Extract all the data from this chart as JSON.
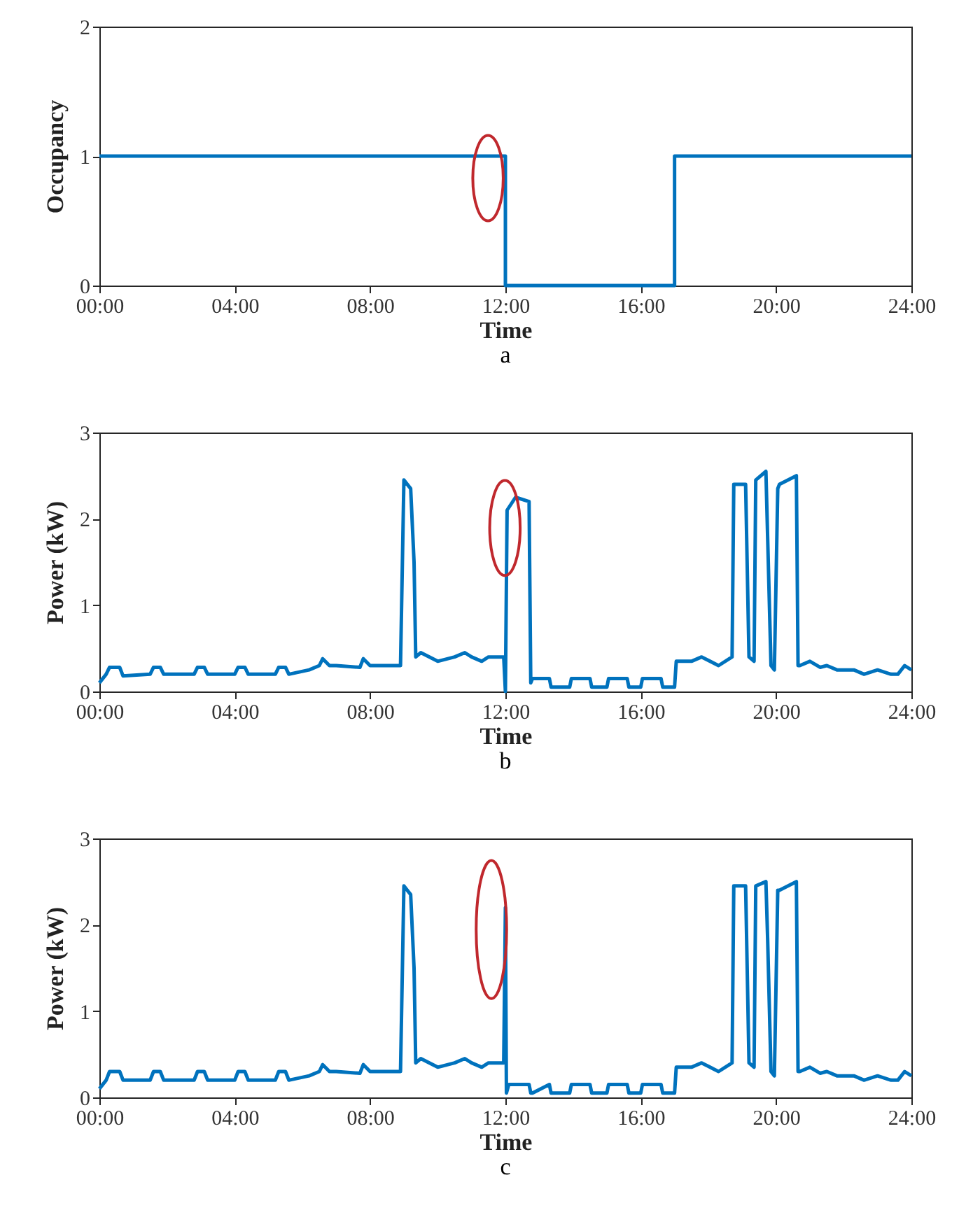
{
  "chart_data": [
    {
      "type": "step",
      "xlabel": "Time",
      "ylabel": "Occupancy",
      "annotations": [
        "a"
      ],
      "color": "#0072bd",
      "line_style": "solid",
      "x": [
        0,
        12,
        17,
        24
      ],
      "values": [
        1,
        0,
        1,
        1
      ],
      "xlim": [
        0,
        24
      ],
      "xticks": [
        {
          "value": 0,
          "label": "00:00"
        },
        {
          "value": 4,
          "label": "04:00"
        },
        {
          "value": 8,
          "label": "08:00"
        },
        {
          "value": 12,
          "label": "12:00"
        },
        {
          "value": 16,
          "label": "16:00"
        },
        {
          "value": 20,
          "label": "20:00"
        },
        {
          "value": 24,
          "label": "24:00"
        }
      ],
      "ylim": [
        0,
        2
      ],
      "yticks": [
        0,
        1,
        2
      ]
    },
    {
      "type": "line",
      "xlabel": "Time",
      "ylabel": "Power (kW)",
      "annotations": [
        "b"
      ],
      "color": "#0072bd",
      "line_style": "solid",
      "x": [
        0,
        0.2,
        0.3,
        0.6,
        0.7,
        1.5,
        1.6,
        1.8,
        1.9,
        2.8,
        2.9,
        3.1,
        3.2,
        4.0,
        4.1,
        4.3,
        4.4,
        5.2,
        5.3,
        5.5,
        5.6,
        6.2,
        6.5,
        6.6,
        6.8,
        7.0,
        7.7,
        7.8,
        8.0,
        8.9,
        9.0,
        9.2,
        9.3,
        9.35,
        9.5,
        10.0,
        10.5,
        10.8,
        11.0,
        11.3,
        11.5,
        11.95,
        12.0,
        12.05,
        12.3,
        12.7,
        12.75,
        12.8,
        13.3,
        13.35,
        13.9,
        13.95,
        14.5,
        14.55,
        15.0,
        15.05,
        15.6,
        15.65,
        16.0,
        16.05,
        16.6,
        16.65,
        17.0,
        17.05,
        17.5,
        17.8,
        18.3,
        18.7,
        18.75,
        19.1,
        19.2,
        19.35,
        19.4,
        19.7,
        19.75,
        19.85,
        19.95,
        20.05,
        20.1,
        20.6,
        20.65,
        20.7,
        21.0,
        21.3,
        21.5,
        21.8,
        22.3,
        22.6,
        23.0,
        23.4,
        23.6,
        23.8,
        24
      ],
      "values": [
        0.1,
        0.2,
        0.28,
        0.28,
        0.18,
        0.2,
        0.28,
        0.28,
        0.2,
        0.2,
        0.28,
        0.28,
        0.2,
        0.2,
        0.28,
        0.28,
        0.2,
        0.2,
        0.28,
        0.28,
        0.2,
        0.25,
        0.3,
        0.38,
        0.3,
        0.3,
        0.28,
        0.38,
        0.3,
        0.3,
        2.45,
        2.35,
        1.5,
        0.4,
        0.45,
        0.35,
        0.4,
        0.45,
        0.4,
        0.35,
        0.4,
        0.4,
        0.0,
        2.1,
        2.25,
        2.2,
        0.1,
        0.15,
        0.15,
        0.05,
        0.05,
        0.15,
        0.15,
        0.05,
        0.05,
        0.15,
        0.15,
        0.05,
        0.05,
        0.15,
        0.15,
        0.05,
        0.05,
        0.35,
        0.35,
        0.4,
        0.3,
        0.4,
        2.4,
        2.4,
        0.4,
        0.35,
        2.45,
        2.55,
        1.8,
        0.3,
        0.25,
        2.35,
        2.4,
        2.5,
        0.3,
        0.3,
        0.35,
        0.28,
        0.3,
        0.25,
        0.25,
        0.2,
        0.25,
        0.2,
        0.2,
        0.3,
        0.25
      ],
      "xlim": [
        0,
        24
      ],
      "xticks": [
        {
          "value": 0,
          "label": "00:00"
        },
        {
          "value": 4,
          "label": "04:00"
        },
        {
          "value": 8,
          "label": "08:00"
        },
        {
          "value": 12,
          "label": "12:00"
        },
        {
          "value": 16,
          "label": "16:00"
        },
        {
          "value": 20,
          "label": "20:00"
        },
        {
          "value": 24,
          "label": "24:00"
        }
      ],
      "ylim": [
        0,
        3
      ],
      "yticks": [
        0,
        1,
        2,
        3
      ]
    },
    {
      "type": "line",
      "xlabel": "Time",
      "ylabel": "Power (kW)",
      "annotations": [
        "c"
      ],
      "color": "#0072bd",
      "line_style": "solid",
      "x": [
        0,
        0.2,
        0.3,
        0.6,
        0.7,
        1.5,
        1.6,
        1.8,
        1.9,
        2.8,
        2.9,
        3.1,
        3.2,
        4.0,
        4.1,
        4.3,
        4.4,
        5.2,
        5.3,
        5.5,
        5.6,
        6.2,
        6.5,
        6.6,
        6.8,
        7.0,
        7.7,
        7.8,
        8.0,
        8.9,
        9.0,
        9.2,
        9.3,
        9.35,
        9.5,
        10.0,
        10.5,
        10.8,
        11.0,
        11.3,
        11.5,
        11.95,
        12.0,
        12.03,
        12.1,
        12.7,
        12.75,
        12.8,
        13.3,
        13.35,
        13.9,
        13.95,
        14.5,
        14.55,
        15.0,
        15.05,
        15.6,
        15.65,
        16.0,
        16.05,
        16.6,
        16.65,
        17.0,
        17.05,
        17.5,
        17.8,
        18.3,
        18.7,
        18.75,
        19.1,
        19.2,
        19.35,
        19.4,
        19.7,
        19.75,
        19.85,
        19.95,
        20.05,
        20.1,
        20.6,
        20.65,
        20.7,
        21.0,
        21.3,
        21.5,
        21.8,
        22.3,
        22.6,
        23.0,
        23.4,
        23.6,
        23.8,
        24
      ],
      "values": [
        0.1,
        0.2,
        0.3,
        0.3,
        0.2,
        0.2,
        0.3,
        0.3,
        0.2,
        0.2,
        0.3,
        0.3,
        0.2,
        0.2,
        0.3,
        0.3,
        0.2,
        0.2,
        0.3,
        0.3,
        0.2,
        0.25,
        0.3,
        0.38,
        0.3,
        0.3,
        0.28,
        0.38,
        0.3,
        0.3,
        2.45,
        2.35,
        1.5,
        0.4,
        0.45,
        0.35,
        0.4,
        0.45,
        0.4,
        0.35,
        0.4,
        0.4,
        2.2,
        0.05,
        0.15,
        0.15,
        0.05,
        0.05,
        0.15,
        0.05,
        0.05,
        0.15,
        0.15,
        0.05,
        0.05,
        0.15,
        0.15,
        0.05,
        0.05,
        0.15,
        0.15,
        0.05,
        0.05,
        0.35,
        0.35,
        0.4,
        0.3,
        0.4,
        2.45,
        2.45,
        0.4,
        0.35,
        2.45,
        2.5,
        1.85,
        0.3,
        0.25,
        2.4,
        2.4,
        2.5,
        0.3,
        0.3,
        0.35,
        0.28,
        0.3,
        0.25,
        0.25,
        0.2,
        0.25,
        0.2,
        0.2,
        0.3,
        0.25
      ],
      "xlim": [
        0,
        24
      ],
      "xticks": [
        {
          "value": 0,
          "label": "00:00"
        },
        {
          "value": 4,
          "label": "04:00"
        },
        {
          "value": 8,
          "label": "08:00"
        },
        {
          "value": 12,
          "label": "12:00"
        },
        {
          "value": 16,
          "label": "16:00"
        },
        {
          "value": 20,
          "label": "20:00"
        },
        {
          "value": 24,
          "label": "24:00"
        }
      ],
      "ylim": [
        0,
        3
      ],
      "yticks": [
        0,
        1,
        2,
        3
      ]
    }
  ]
}
